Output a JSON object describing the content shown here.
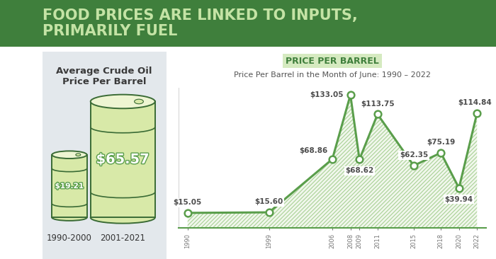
{
  "header": {
    "title": "FOOD PRICES ARE LINKED TO INPUTS, PRIMARILY FUEL"
  },
  "left_panel": {
    "title": "Average Crude Oil Price Per Barrel",
    "categories": [
      "1990-2000",
      "2001-2021"
    ],
    "values": [
      19.21,
      65.57
    ],
    "value_labels": [
      "$19.21",
      "$65.57"
    ]
  },
  "chart_data": {
    "type": "area",
    "title": "PRICE PER BARREL",
    "subtitle": "Price Per Barrel in the Month of June: 1990 – 2022",
    "x": [
      1990,
      1999,
      2006,
      2008,
      2009,
      2011,
      2015,
      2018,
      2020,
      2022
    ],
    "values": [
      15.05,
      15.6,
      68.86,
      133.05,
      68.62,
      113.75,
      62.35,
      75.19,
      39.94,
      114.84
    ],
    "value_labels": [
      "$15.05",
      "$15.60",
      "$68.86",
      "$133.05",
      "$68.62",
      "$113.75",
      "$62.35",
      "$75.19",
      "$39.94",
      "$114.84"
    ],
    "data_labels": true,
    "xlim": [
      1989,
      2023
    ],
    "xticks": [
      1990,
      1999,
      2006,
      2008,
      2009,
      2011,
      2015,
      2018,
      2020,
      2022
    ],
    "ylim": [
      0,
      140
    ],
    "yticks": [],
    "tick_labels": "x",
    "grid": false,
    "color": "#5a9e4b",
    "marker": "o",
    "line_style": "solid"
  }
}
